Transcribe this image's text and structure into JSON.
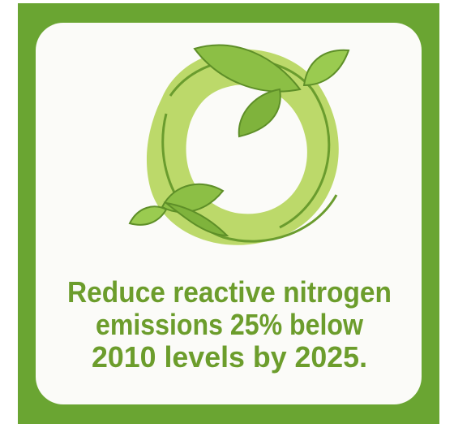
{
  "text": {
    "lines": [
      "Reduce reactive nitrogen",
      "emissions 25% below",
      "2010 levels by 2025."
    ]
  }
}
